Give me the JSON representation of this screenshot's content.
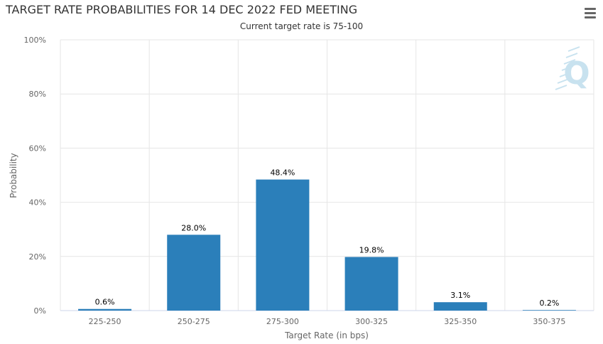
{
  "header": {
    "title": "TARGET RATE PROBABILITIES FOR 14 DEC 2022 FED MEETING",
    "subtitle": "Current target rate is 75-100"
  },
  "toolbar": {
    "menu_icon": "hamburger-menu-icon"
  },
  "colors": {
    "bar": "#2b7fba",
    "grid": "#e6e6e6",
    "text": "#333333",
    "axis_text": "#666666",
    "watermark": "#c8e2ef"
  },
  "watermark": {
    "letter": "Q"
  },
  "chart_data": {
    "type": "bar",
    "categories": [
      "225-250",
      "250-275",
      "275-300",
      "300-325",
      "325-350",
      "350-375"
    ],
    "values": [
      0.6,
      28.0,
      48.4,
      19.8,
      3.1,
      0.2
    ],
    "data_labels": [
      "0.6%",
      "28.0%",
      "48.4%",
      "19.8%",
      "3.1%",
      "0.2%"
    ],
    "title": "TARGET RATE PROBABILITIES FOR 14 DEC 2022 FED MEETING",
    "subtitle": "Current target rate is 75-100",
    "xlabel": "Target Rate (in bps)",
    "ylabel": "Probability",
    "ylim": [
      0,
      100
    ],
    "yticks": [
      0,
      20,
      40,
      60,
      80,
      100
    ],
    "ytick_labels": [
      "0%",
      "20%",
      "40%",
      "60%",
      "80%",
      "100%"
    ],
    "grid": true,
    "legend": false
  }
}
